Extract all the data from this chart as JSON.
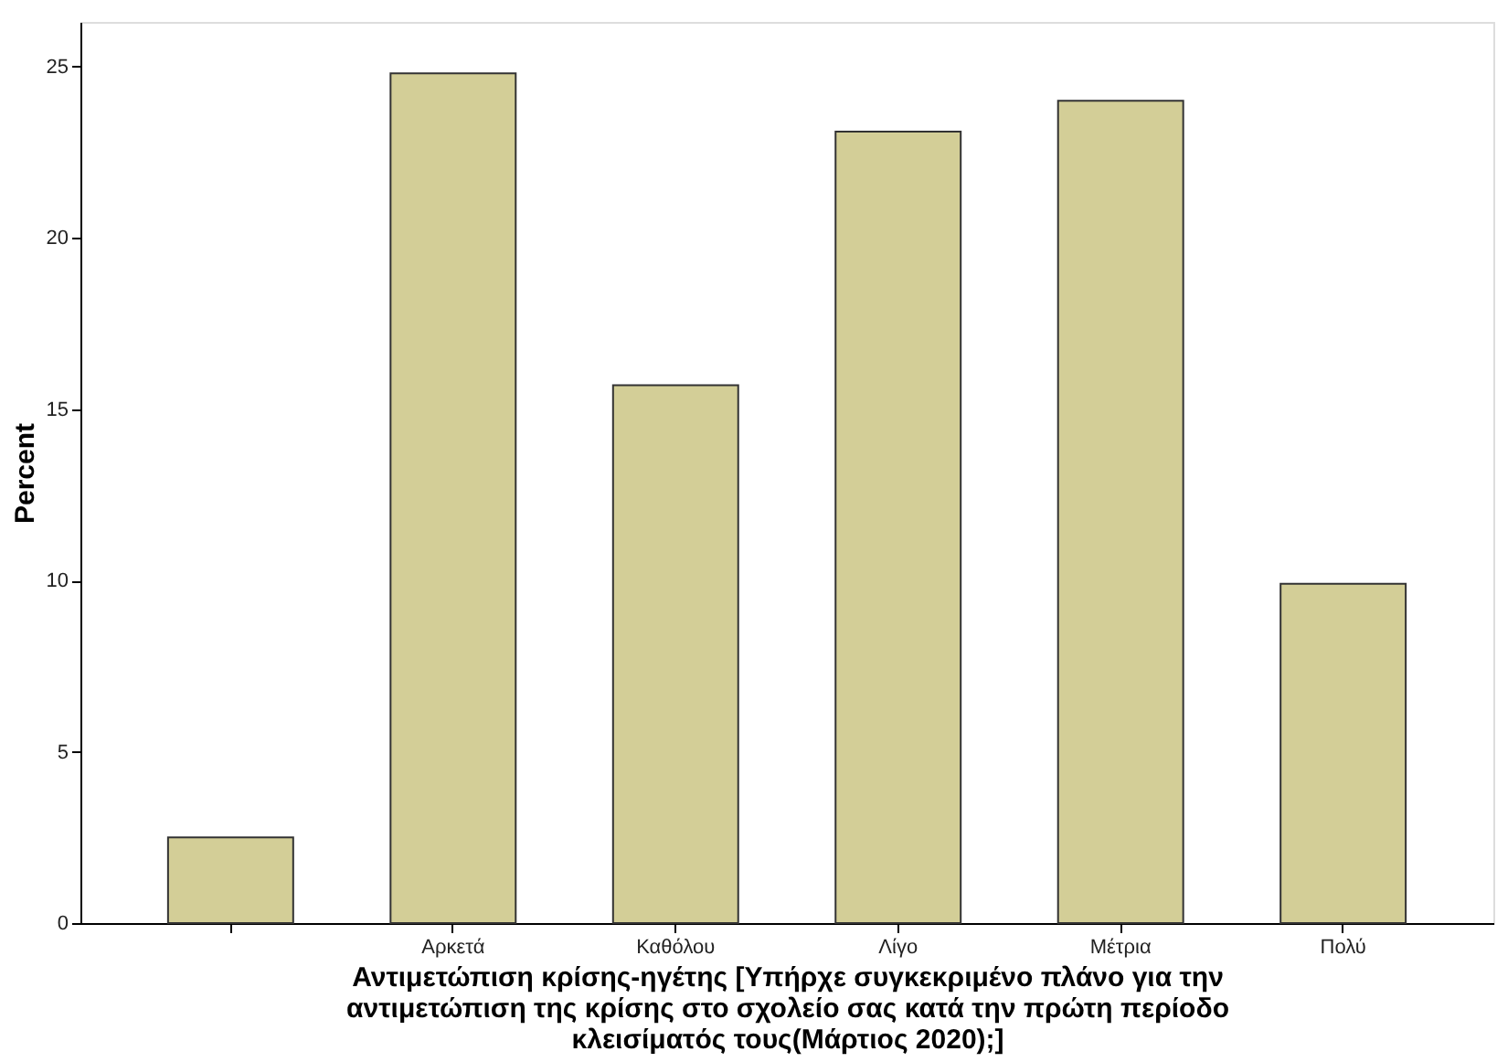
{
  "chart_data": {
    "type": "bar",
    "categories": [
      null,
      "Αρκετά",
      "Καθόλου",
      "Λίγο",
      "Μέτρια",
      "Πολύ"
    ],
    "values": [
      2.5,
      24.8,
      15.7,
      23.1,
      24.0,
      9.9
    ],
    "color": "#d3ce97",
    "ylabel": "Percent",
    "xlabel": "Αντιμετώπιση κρίσης-ηγέτης [Υπήρχε συγκεκριμένο πλάνο για την\nαντιμετώπιση της κρίσης στο σχολείο σας κατά την πρώτη περίοδο\nκλεισίματός τους(Μάρτιος 2020);]",
    "ylim": [
      0,
      26.3
    ],
    "yticks": [
      0,
      5,
      10,
      15,
      20,
      25
    ],
    "grid": false
  }
}
